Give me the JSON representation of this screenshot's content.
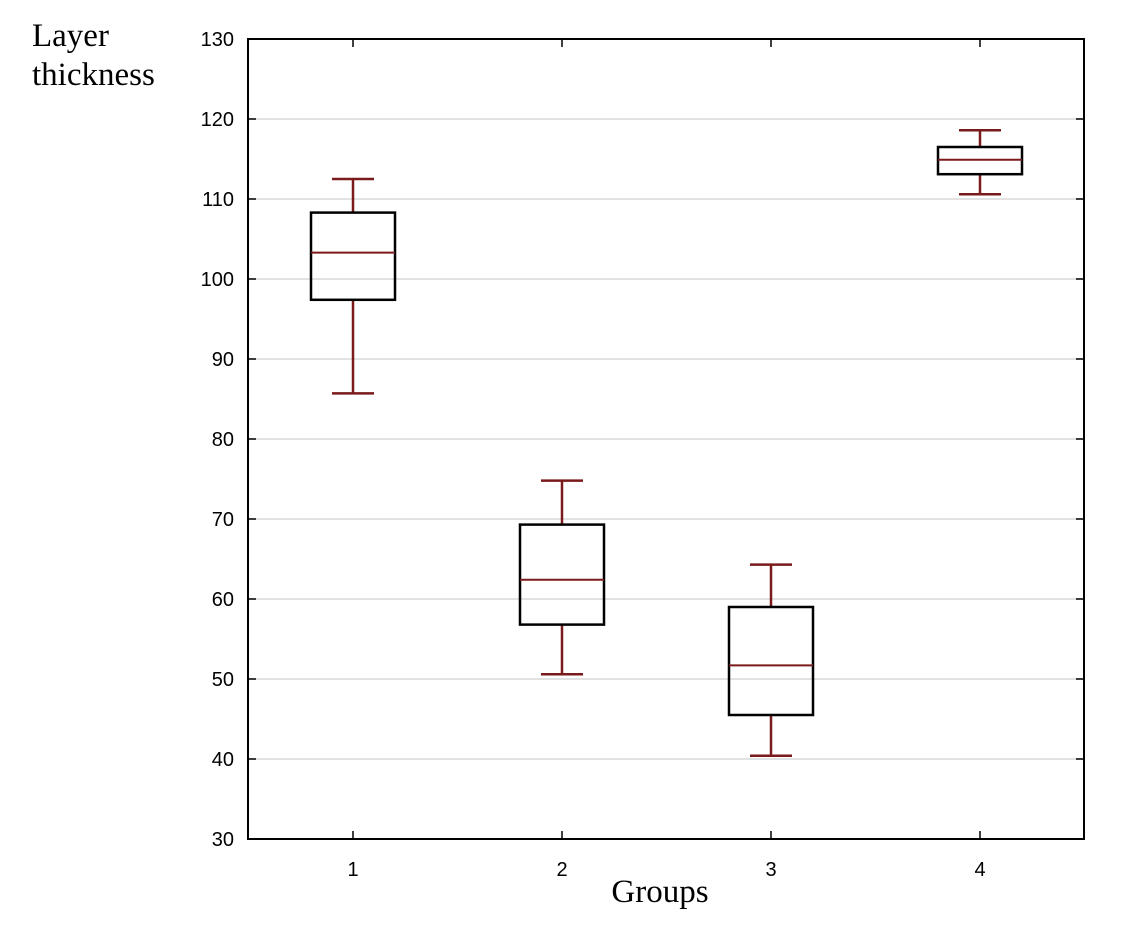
{
  "chart_data": {
    "type": "box",
    "ylabel_lines": [
      "Layer",
      "thickness"
    ],
    "xlabel": "Groups",
    "categories": [
      "1",
      "2",
      "3",
      "4"
    ],
    "ylim": [
      30,
      130
    ],
    "yticks": [
      30,
      40,
      50,
      60,
      70,
      80,
      90,
      100,
      110,
      120,
      130
    ],
    "grid": "horizontal",
    "color": "#7a1a1a",
    "boxes": [
      {
        "category": "1",
        "whisker_low": 85.7,
        "q1": 97.4,
        "median": 103.3,
        "q3": 108.3,
        "whisker_high": 112.5
      },
      {
        "category": "2",
        "whisker_low": 50.6,
        "q1": 56.8,
        "median": 62.4,
        "q3": 69.3,
        "whisker_high": 74.8
      },
      {
        "category": "3",
        "whisker_low": 40.4,
        "q1": 45.5,
        "median": 51.7,
        "q3": 59.0,
        "whisker_high": 64.3
      },
      {
        "category": "4",
        "whisker_low": 110.6,
        "q1": 113.1,
        "median": 114.9,
        "q3": 116.5,
        "whisker_high": 118.6
      }
    ]
  }
}
